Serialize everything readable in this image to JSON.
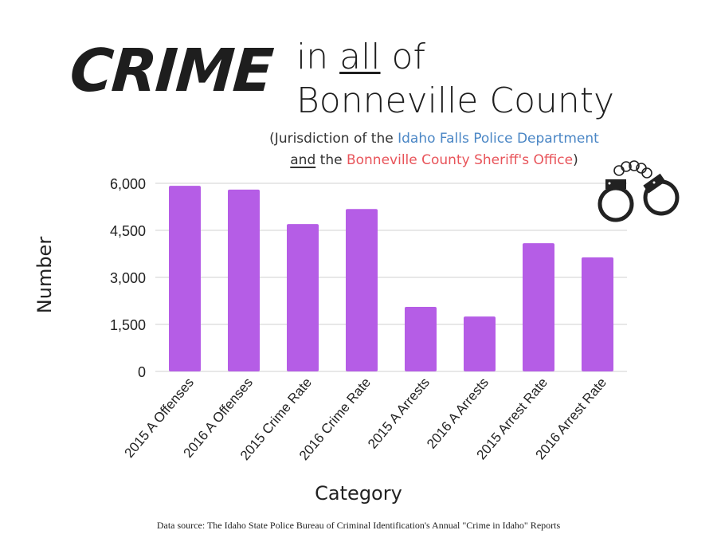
{
  "header": {
    "crime_word": "CRIME",
    "title_pre": "in ",
    "title_emph": "all",
    "title_post": " of",
    "title_line2": "Bonneville County",
    "subtitle_line1_pre": "(Jurisdiction of the ",
    "subtitle_line1_link": "Idaho Falls Police Department",
    "subtitle_line2_emph": "and",
    "subtitle_line2_mid": " the ",
    "subtitle_line2_link": "Bonneville County Sheriff's Office",
    "subtitle_line2_post": ")",
    "icon": "handcuffs-icon"
  },
  "colors": {
    "bar": "#b55de6",
    "grid": "#d9d9d9",
    "blue_text": "#4a86c5",
    "red_text": "#e8545a"
  },
  "footer": {
    "source": "Data source: The Idaho State Police Bureau of Criminal Identification's Annual \"Crime in Idaho\" Reports"
  },
  "chart_data": {
    "type": "bar",
    "title": "CRIME in all of Bonneville County",
    "subtitle": "(Jurisdiction of the Idaho Falls Police Department and the Bonneville County Sheriff's Office)",
    "xlabel": "Category",
    "ylabel": "Number",
    "categories": [
      "2015 A Offenses",
      "2016 A Offenses",
      "2015 Crime Rate",
      "2016 Crime Rate",
      "2015 A Arrests",
      "2016 A Arrests",
      "2015 Arrest Rate",
      "2016 Arrest Rate"
    ],
    "values": [
      5920,
      5800,
      4700,
      5180,
      2060,
      1750,
      4090,
      3640
    ],
    "ylim": [
      0,
      6000
    ],
    "yticks": [
      0,
      1500,
      3000,
      4500,
      6000
    ],
    "ytick_labels": [
      "0",
      "1,500",
      "3,000",
      "4,500",
      "6,000"
    ],
    "grid": true,
    "legend": null,
    "annotation": "Data source: The Idaho State Police Bureau of Criminal Identification's Annual \"Crime in Idaho\" Reports"
  }
}
